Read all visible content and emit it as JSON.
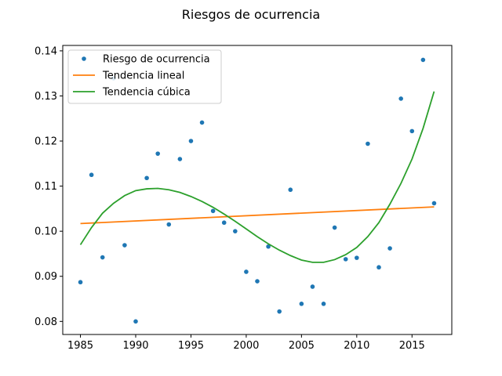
{
  "chart_data": {
    "type": "line",
    "title": "Riesgos de ocurrencia",
    "xlabel": "",
    "ylabel": "",
    "xlim": [
      1983.4,
      2018.6
    ],
    "ylim": [
      0.0771,
      0.1412
    ],
    "xticks": [
      1985,
      1990,
      1995,
      2000,
      2005,
      2010,
      2015
    ],
    "yticks": [
      0.08,
      0.09,
      0.1,
      0.11,
      0.12,
      0.13,
      0.14
    ],
    "ytick_labels": [
      "0.08",
      "0.09",
      "0.10",
      "0.11",
      "0.12",
      "0.13",
      "0.14"
    ],
    "grid": false,
    "legend_position": "upper-left",
    "series": [
      {
        "name": "Riesgo de ocurrencia",
        "kind": "scatter",
        "color": "#1f77b4",
        "x": [
          1985,
          1986,
          1987,
          1988,
          1989,
          1990,
          1991,
          1992,
          1993,
          1994,
          1995,
          1996,
          1997,
          1998,
          1999,
          2000,
          2001,
          2002,
          2003,
          2004,
          2005,
          2006,
          2007,
          2008,
          2009,
          2010,
          2011,
          2012,
          2013,
          2014,
          2015,
          2016,
          2017
        ],
        "y": [
          0.0887,
          0.1125,
          0.0942,
          0.1339,
          0.0969,
          0.08,
          0.1118,
          0.1172,
          0.1015,
          0.116,
          0.12,
          0.1241,
          0.1045,
          0.1019,
          0.1,
          0.091,
          0.0889,
          0.0966,
          0.0822,
          0.1092,
          0.0839,
          0.0877,
          0.0839,
          0.1008,
          0.0938,
          0.0941,
          0.1194,
          0.092,
          0.0962,
          0.1294,
          0.1222,
          0.138,
          0.1062
        ]
      },
      {
        "name": "Tendencia lineal",
        "kind": "line",
        "color": "#ff7f0e",
        "x": [
          1985,
          2017
        ],
        "y": [
          0.1017,
          0.1054
        ]
      },
      {
        "name": "Tendencia cúbica",
        "kind": "line",
        "color": "#2ca02c",
        "x": [
          1985,
          1986,
          1987,
          1988,
          1989,
          1990,
          1991,
          1992,
          1993,
          1994,
          1995,
          1996,
          1997,
          1998,
          1999,
          2000,
          2001,
          2002,
          2003,
          2004,
          2005,
          2006,
          2007,
          2008,
          2009,
          2010,
          2011,
          2012,
          2013,
          2014,
          2015,
          2016,
          2017
        ],
        "y": [
          0.097,
          0.1008,
          0.104,
          0.1062,
          0.1079,
          0.109,
          0.1094,
          0.1095,
          0.1092,
          0.1086,
          0.1077,
          0.1066,
          0.1053,
          0.1038,
          0.1022,
          0.1005,
          0.0988,
          0.0972,
          0.0958,
          0.0946,
          0.0936,
          0.0931,
          0.0931,
          0.0937,
          0.0948,
          0.0964,
          0.0988,
          0.1019,
          0.106,
          0.1106,
          0.116,
          0.1228,
          0.131
        ]
      }
    ]
  }
}
